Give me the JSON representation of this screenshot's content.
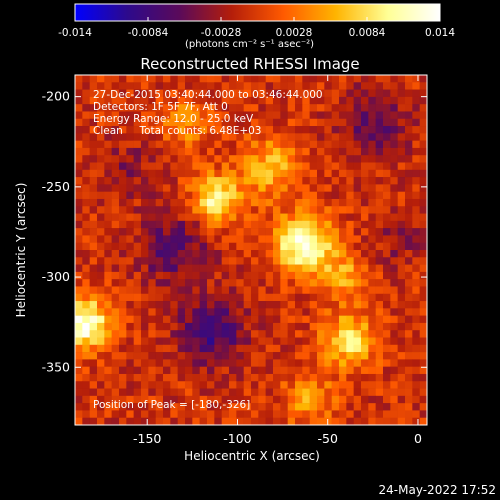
{
  "colorbar": {
    "ticks": [
      "-0.014",
      "-0.0084",
      "-0.0028",
      "0.0028",
      "0.0084",
      "0.014"
    ],
    "unit_label": "(photons cm⁻² s⁻¹ asec⁻²)",
    "range": [
      -0.014,
      0.014
    ],
    "colormap": [
      "#0000ff",
      "#2d0a8c",
      "#5a0a5a",
      "#b41e0a",
      "#ff5a00",
      "#ffb400",
      "#ffff96",
      "#ffffff"
    ]
  },
  "annotations": {
    "time": "27-Dec-2015 03:40:44.000 to 03:46:44.000",
    "detectors": "Detectors: 1F 5F 7F, Att 0",
    "energy": "Energy Range: 12.0 - 25.0 keV",
    "clean": "Clean     Total counts: 6.48E+03",
    "peak": "Position of Peak = [-180,-326]"
  },
  "footer": {
    "timestamp": "24-May-2022 17:52"
  },
  "chart_data": {
    "type": "heatmap",
    "title": "Reconstructed RHESSI Image",
    "xlabel": "Heliocentric X (arcsec)",
    "ylabel": "Heliocentric Y (arcsec)",
    "xlim": [
      -190,
      5
    ],
    "ylim": [
      -382,
      -188
    ],
    "xticks": [
      -150,
      -100,
      -50,
      0
    ],
    "xtick_labels": [
      "-150",
      "-100",
      "-50",
      "0"
    ],
    "yticks": [
      -200,
      -250,
      -300,
      -350
    ],
    "ytick_labels": [
      "-200",
      "-250",
      "-300",
      "-350"
    ],
    "sources": [
      {
        "x": -63,
        "y": -282,
        "sigma": 11,
        "amp": 1.0
      },
      {
        "x": -112,
        "y": -257,
        "sigma": 9,
        "amp": 0.85
      },
      {
        "x": -82,
        "y": -240,
        "sigma": 12,
        "amp": 0.5
      },
      {
        "x": -185,
        "y": -326,
        "sigma": 10,
        "amp": 1.0
      },
      {
        "x": -38,
        "y": -335,
        "sigma": 10,
        "amp": 0.7
      },
      {
        "x": -42,
        "y": -300,
        "sigma": 9,
        "amp": 0.45
      },
      {
        "x": -128,
        "y": -215,
        "sigma": 10,
        "amp": 0.35
      },
      {
        "x": -60,
        "y": -368,
        "sigma": 10,
        "amp": 0.4
      },
      {
        "x": -115,
        "y": -330,
        "sigma": 13,
        "amp": -0.55
      },
      {
        "x": -135,
        "y": -285,
        "sigma": 14,
        "amp": -0.4
      },
      {
        "x": -25,
        "y": -215,
        "sigma": 14,
        "amp": -0.35
      },
      {
        "x": -160,
        "y": -240,
        "sigma": 12,
        "amp": -0.2
      },
      {
        "x": -10,
        "y": -280,
        "sigma": 10,
        "amp": -0.2
      }
    ],
    "baseline": -0.05,
    "noise": 0.18
  }
}
